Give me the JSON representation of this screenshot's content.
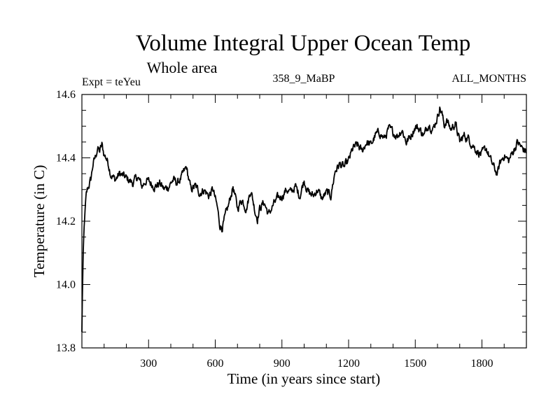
{
  "chart_data": {
    "type": "line",
    "title": "Volume Integral Upper Ocean Temp",
    "subtitle": "Whole area",
    "left_label": "Expt = teYeu",
    "center_label": "358_9_MaBP",
    "right_label": "ALL_MONTHS",
    "xlabel": "Time (in years since start)",
    "ylabel": "Temperature (in C)",
    "xlim": [
      0,
      2000
    ],
    "ylim": [
      13.8,
      14.6
    ],
    "x_ticks": [
      300,
      600,
      900,
      1200,
      1500,
      1800
    ],
    "x_tick_labels": [
      "300",
      "600",
      "900",
      "1200",
      "1500",
      "1800"
    ],
    "y_ticks": [
      13.8,
      14.0,
      14.2,
      14.4,
      14.6
    ],
    "y_tick_labels": [
      "13.8",
      "14.0",
      "14.2",
      "14.4",
      "14.6"
    ],
    "line_color": "#000000",
    "series": [
      {
        "name": "Volume Integral Upper Ocean Temp",
        "x": [
          0,
          3,
          6,
          10,
          15,
          20,
          25,
          30,
          40,
          50,
          60,
          70,
          80,
          90,
          100,
          110,
          120,
          130,
          140,
          150,
          170,
          190,
          210,
          230,
          250,
          270,
          290,
          310,
          330,
          350,
          370,
          390,
          410,
          430,
          450,
          470,
          490,
          510,
          530,
          550,
          570,
          590,
          600,
          610,
          620,
          630,
          640,
          660,
          680,
          700,
          720,
          740,
          760,
          780,
          790,
          800,
          820,
          840,
          860,
          880,
          900,
          920,
          940,
          960,
          980,
          1000,
          1020,
          1040,
          1060,
          1080,
          1100,
          1120,
          1140,
          1160,
          1180,
          1200,
          1220,
          1240,
          1260,
          1280,
          1300,
          1320,
          1340,
          1360,
          1380,
          1400,
          1420,
          1440,
          1460,
          1480,
          1500,
          1520,
          1540,
          1560,
          1580,
          1600,
          1610,
          1620,
          1630,
          1640,
          1660,
          1680,
          1700,
          1720,
          1740,
          1760,
          1780,
          1800,
          1820,
          1840,
          1860,
          1870,
          1880,
          1900,
          1920,
          1940,
          1960,
          1980,
          2000
        ],
        "values": [
          13.85,
          14.0,
          14.1,
          14.18,
          14.24,
          14.28,
          14.3,
          14.31,
          14.33,
          14.38,
          14.4,
          14.43,
          14.42,
          14.44,
          14.41,
          14.4,
          14.38,
          14.35,
          14.34,
          14.33,
          14.35,
          14.34,
          14.33,
          14.32,
          14.34,
          14.31,
          14.33,
          14.32,
          14.31,
          14.32,
          14.3,
          14.31,
          14.33,
          14.32,
          14.34,
          14.37,
          14.3,
          14.31,
          14.29,
          14.3,
          14.28,
          14.3,
          14.27,
          14.24,
          14.19,
          14.18,
          14.2,
          14.25,
          14.31,
          14.24,
          14.27,
          14.24,
          14.3,
          14.23,
          14.21,
          14.24,
          14.26,
          14.22,
          14.25,
          14.27,
          14.28,
          14.3,
          14.29,
          14.31,
          14.28,
          14.33,
          14.29,
          14.28,
          14.3,
          14.27,
          14.29,
          14.28,
          14.36,
          14.38,
          14.37,
          14.39,
          14.43,
          14.44,
          14.42,
          14.45,
          14.44,
          14.47,
          14.48,
          14.46,
          14.49,
          14.48,
          14.47,
          14.49,
          14.45,
          14.47,
          14.5,
          14.49,
          14.47,
          14.51,
          14.49,
          14.53,
          14.56,
          14.54,
          14.5,
          14.52,
          14.49,
          14.51,
          14.45,
          14.47,
          14.46,
          14.44,
          14.42,
          14.41,
          14.43,
          14.39,
          14.36,
          14.35,
          14.38,
          14.41,
          14.39,
          14.42,
          14.45,
          14.43,
          14.42
        ]
      }
    ]
  }
}
